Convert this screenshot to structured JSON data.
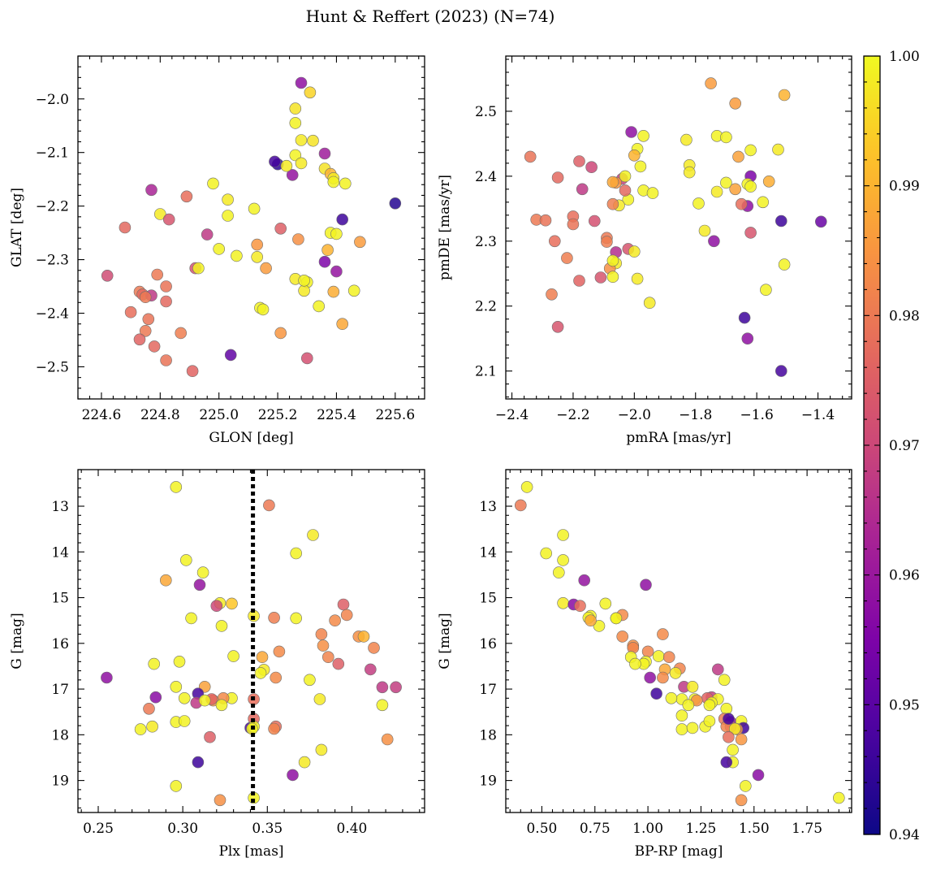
{
  "figure": {
    "title": "Hunt & Reffert (2023) (N=74)"
  },
  "colorbar": {
    "vmin": 0.94,
    "vmax": 1.0,
    "colormap": "plasma",
    "ticks": [
      0.94,
      0.95,
      0.96,
      0.97,
      0.98,
      0.99,
      1.0
    ],
    "tick_labels": [
      "0.94",
      "0.95",
      "0.96",
      "0.97",
      "0.98",
      "0.99",
      "1.00"
    ]
  },
  "chart_data": [
    {
      "type": "scatter",
      "id": "lb",
      "xlabel": "GLON [deg]",
      "ylabel": "GLAT [deg]",
      "xlim": [
        224.52,
        225.7
      ],
      "ylim": [
        -2.56,
        -1.92
      ],
      "invert_y": false,
      "xticks": [
        224.6,
        224.8,
        225.0,
        225.2,
        225.4,
        225.6
      ],
      "xtick_labels": [
        "224.6",
        "224.8",
        "225.0",
        "225.2",
        "225.4",
        "225.6"
      ],
      "yticks": [
        -2.0,
        -2.1,
        -2.2,
        -2.3,
        -2.4,
        -2.5
      ],
      "ytick_labels": [
        "−2.0",
        "−2.1",
        "−2.2",
        "−2.3",
        "−2.4",
        "−2.5"
      ],
      "x": [
        225.6,
        225.28,
        225.31,
        225.26,
        225.26,
        225.28,
        225.32,
        225.36,
        225.26,
        225.28,
        225.36,
        225.2,
        225.38,
        225.25,
        225.39,
        225.39,
        225.43,
        224.77,
        224.98,
        225.03,
        225.12,
        224.68,
        224.8,
        224.83,
        224.89,
        225.03,
        224.96,
        225.42,
        225.21,
        225.38,
        225.4,
        225.13,
        225.48,
        225.0,
        225.06,
        225.13,
        224.62,
        225.16,
        225.36,
        225.26,
        224.92,
        224.93,
        225.3,
        225.4,
        225.29,
        224.73,
        224.74,
        224.77,
        224.75,
        224.82,
        224.79,
        225.46,
        224.82,
        225.14,
        225.15,
        225.34,
        224.7,
        224.76,
        224.75,
        225.42,
        224.87,
        225.21,
        224.73,
        224.78,
        224.82,
        225.3,
        224.91,
        225.04,
        225.19,
        225.23,
        225.37,
        225.39,
        225.29,
        225.27
      ],
      "y": [
        -2.195,
        -1.97,
        -1.988,
        -2.018,
        -2.045,
        -2.077,
        -2.078,
        -2.102,
        -2.105,
        -2.12,
        -2.13,
        -2.122,
        -2.14,
        -2.142,
        -2.148,
        -2.155,
        -2.158,
        -2.17,
        -2.158,
        -2.188,
        -2.205,
        -2.24,
        -2.215,
        -2.225,
        -2.182,
        -2.218,
        -2.253,
        -2.225,
        -2.242,
        -2.25,
        -2.252,
        -2.272,
        -2.267,
        -2.28,
        -2.293,
        -2.295,
        -2.33,
        -2.316,
        -2.304,
        -2.336,
        -2.316,
        -2.316,
        -2.342,
        -2.322,
        -2.358,
        -2.36,
        -2.365,
        -2.367,
        -2.37,
        -2.35,
        -2.328,
        -2.358,
        -2.378,
        -2.39,
        -2.393,
        -2.387,
        -2.398,
        -2.411,
        -2.433,
        -2.42,
        -2.437,
        -2.437,
        -2.449,
        -2.462,
        -2.488,
        -2.484,
        -2.508,
        -2.478,
        -2.117,
        -2.125,
        -2.282,
        -2.36,
        -2.339,
        -2.262
      ],
      "c": [
        0.943,
        0.958,
        0.995,
        0.997,
        0.999,
        0.998,
        0.997,
        0.961,
        0.999,
        0.998,
        0.997,
        0.944,
        0.99,
        0.959,
        0.998,
        0.999,
        0.999,
        0.963,
        0.999,
        0.998,
        0.999,
        0.977,
        0.998,
        0.973,
        0.978,
        0.999,
        0.967,
        0.946,
        0.975,
        0.999,
        0.999,
        0.985,
        0.986,
        0.999,
        0.999,
        0.998,
        0.971,
        0.986,
        0.955,
        0.998,
        0.972,
        0.999,
        0.999,
        0.959,
        0.998,
        0.98,
        0.977,
        0.967,
        0.98,
        0.979,
        0.98,
        0.999,
        0.977,
        0.999,
        0.999,
        0.999,
        0.978,
        0.979,
        0.98,
        0.988,
        0.981,
        0.985,
        0.976,
        0.977,
        0.979,
        0.972,
        0.976,
        0.951,
        0.947,
        0.998,
        0.99,
        0.989,
        0.999,
        0.984
      ]
    },
    {
      "type": "scatter",
      "id": "pm",
      "xlabel": "pmRA [mas/yr]",
      "ylabel": "pmDE [mas/yr]",
      "xlim": [
        -2.42,
        -1.29
      ],
      "ylim": [
        2.057,
        2.585
      ],
      "invert_y": false,
      "xticks": [
        -2.4,
        -2.2,
        -2.0,
        -1.8,
        -1.6,
        -1.4
      ],
      "xtick_labels": [
        "−2.4",
        "−2.2",
        "−2.0",
        "−1.8",
        "−1.6",
        "−1.4"
      ],
      "yticks": [
        2.1,
        2.2,
        2.3,
        2.4,
        2.5
      ],
      "ytick_labels": [
        "2.1",
        "2.2",
        "2.3",
        "2.4",
        "2.5"
      ],
      "x": [
        -1.75,
        -1.67,
        -1.51,
        -2.01,
        -1.97,
        -1.73,
        -1.7,
        -1.53,
        -1.83,
        -1.99,
        -1.62,
        -1.66,
        -1.62,
        -1.82,
        -2.34,
        -1.98,
        -2.18,
        -2.0,
        -2.14,
        -2.25,
        -2.04,
        -2.03,
        -1.82,
        -2.06,
        -1.7,
        -1.73,
        -1.63,
        -1.56,
        -1.97,
        -2.07,
        -1.62,
        -2.02,
        -1.67,
        -2.03,
        -2.17,
        -1.94,
        -1.63,
        -1.65,
        -1.79,
        -2.05,
        -1.58,
        -2.32,
        -2.29,
        -2.2,
        -2.13,
        -1.62,
        -2.2,
        -2.26,
        -1.52,
        -1.39,
        -2.09,
        -2.09,
        -2.06,
        -2.02,
        -2.07,
        -2.22,
        -2.0,
        -2.06,
        -1.77,
        -1.74,
        -2.08,
        -2.11,
        -1.51,
        -2.07,
        -2.07,
        -2.18,
        -1.99,
        -1.57,
        -2.27,
        -1.95,
        -1.63,
        -2.25,
        -1.64,
        -1.52
      ],
      "y": [
        2.543,
        2.512,
        2.525,
        2.468,
        2.462,
        2.462,
        2.46,
        2.441,
        2.456,
        2.442,
        2.44,
        2.43,
        2.4,
        2.417,
        2.43,
        2.415,
        2.423,
        2.432,
        2.414,
        2.398,
        2.396,
        2.4,
        2.406,
        2.39,
        2.39,
        2.376,
        2.388,
        2.392,
        2.378,
        2.391,
        2.384,
        2.364,
        2.38,
        2.378,
        2.38,
        2.374,
        2.354,
        2.357,
        2.358,
        2.355,
        2.36,
        2.333,
        2.332,
        2.338,
        2.331,
        2.313,
        2.326,
        2.3,
        2.331,
        2.33,
        2.305,
        2.299,
        2.283,
        2.288,
        2.357,
        2.274,
        2.284,
        2.266,
        2.316,
        2.3,
        2.258,
        2.244,
        2.264,
        2.27,
        2.245,
        2.239,
        2.242,
        2.225,
        2.218,
        2.205,
        2.15,
        2.168,
        2.182,
        2.1
      ],
      "c": [
        0.986,
        0.986,
        0.99,
        0.958,
        0.999,
        0.999,
        0.999,
        0.998,
        0.998,
        0.999,
        0.999,
        0.987,
        0.955,
        0.998,
        0.979,
        0.999,
        0.975,
        0.99,
        0.97,
        0.977,
        0.968,
        0.999,
        0.998,
        0.985,
        0.999,
        0.998,
        0.999,
        0.989,
        0.999,
        0.988,
        0.999,
        0.999,
        0.987,
        0.977,
        0.967,
        0.999,
        0.958,
        0.978,
        0.999,
        0.998,
        0.999,
        0.98,
        0.979,
        0.978,
        0.972,
        0.973,
        0.979,
        0.978,
        0.946,
        0.952,
        0.98,
        0.981,
        0.965,
        0.973,
        0.981,
        0.981,
        0.998,
        0.998,
        0.998,
        0.958,
        0.984,
        0.973,
        0.999,
        0.999,
        0.999,
        0.976,
        0.998,
        0.999,
        0.981,
        0.998,
        0.958,
        0.973,
        0.946,
        0.947
      ]
    },
    {
      "type": "scatter",
      "id": "plx",
      "xlabel": "Plx [mas]",
      "ylabel": "G [mag]",
      "xlim": [
        0.238,
        0.443
      ],
      "ylim": [
        12.2,
        19.7
      ],
      "invert_y": true,
      "xticks": [
        0.25,
        0.3,
        0.35,
        0.4
      ],
      "xtick_labels": [
        "0.25",
        "0.30",
        "0.35",
        "0.40"
      ],
      "yticks": [
        13,
        14,
        15,
        16,
        17,
        18,
        19
      ],
      "ytick_labels": [
        "13",
        "14",
        "15",
        "16",
        "17",
        "18",
        "19"
      ],
      "vline": 0.3415,
      "x": [
        0.296,
        0.351,
        0.377,
        0.367,
        0.302,
        0.29,
        0.312,
        0.31,
        0.322,
        0.329,
        0.395,
        0.305,
        0.342,
        0.354,
        0.367,
        0.397,
        0.39,
        0.323,
        0.382,
        0.404,
        0.407,
        0.383,
        0.392,
        0.33,
        0.413,
        0.357,
        0.347,
        0.348,
        0.346,
        0.298,
        0.313,
        0.355,
        0.386,
        0.283,
        0.411,
        0.375,
        0.381,
        0.255,
        0.296,
        0.309,
        0.342,
        0.418,
        0.426,
        0.284,
        0.28,
        0.301,
        0.308,
        0.329,
        0.324,
        0.318,
        0.317,
        0.323,
        0.313,
        0.418,
        0.342,
        0.382,
        0.296,
        0.275,
        0.282,
        0.301,
        0.34,
        0.355,
        0.342,
        0.354,
        0.341,
        0.309,
        0.316,
        0.322,
        0.421,
        0.296,
        0.372,
        0.365,
        0.342,
        0.32
      ],
      "y": [
        12.58,
        12.98,
        13.63,
        14.03,
        14.18,
        14.62,
        14.45,
        14.72,
        15.12,
        15.13,
        15.15,
        15.45,
        15.4,
        15.44,
        15.45,
        15.38,
        15.5,
        15.62,
        15.8,
        15.85,
        15.85,
        16.05,
        16.45,
        16.28,
        16.1,
        16.18,
        16.3,
        16.58,
        16.65,
        16.4,
        16.95,
        16.75,
        16.3,
        16.45,
        16.57,
        16.8,
        17.22,
        16.75,
        16.95,
        17.1,
        17.22,
        16.96,
        16.96,
        17.18,
        17.43,
        17.2,
        17.3,
        17.2,
        17.2,
        17.25,
        17.22,
        17.35,
        17.25,
        17.35,
        17.65,
        18.33,
        17.72,
        17.88,
        17.82,
        17.7,
        17.85,
        17.82,
        17.82,
        17.87,
        17.87,
        18.6,
        18.05,
        19.43,
        18.1,
        19.12,
        18.6,
        18.88,
        19.38,
        15.18
      ],
      "c": [
        0.999,
        0.98,
        0.998,
        0.999,
        0.999,
        0.988,
        0.999,
        0.959,
        0.998,
        0.993,
        0.975,
        0.999,
        0.998,
        0.981,
        0.999,
        0.982,
        0.983,
        0.999,
        0.982,
        0.984,
        0.99,
        0.984,
        0.975,
        0.999,
        0.982,
        0.983,
        0.988,
        0.998,
        0.999,
        0.999,
        0.987,
        0.983,
        0.982,
        0.999,
        0.968,
        0.999,
        0.998,
        0.958,
        0.999,
        0.947,
        0.978,
        0.967,
        0.968,
        0.957,
        0.98,
        0.999,
        0.967,
        0.999,
        0.983,
        0.985,
        0.976,
        0.999,
        0.999,
        0.999,
        0.977,
        0.998,
        0.999,
        0.999,
        0.998,
        0.999,
        0.947,
        0.978,
        0.999,
        0.982,
        0.999,
        0.946,
        0.975,
        0.984,
        0.984,
        0.999,
        0.998,
        0.958,
        0.999,
        0.97
      ]
    },
    {
      "type": "scatter",
      "id": "cmd",
      "xlabel": "BP-RP [mag]",
      "ylabel": "G [mag]",
      "xlim": [
        0.33,
        1.96
      ],
      "ylim": [
        12.2,
        19.7
      ],
      "invert_y": true,
      "xticks": [
        0.5,
        0.75,
        1.0,
        1.25,
        1.5,
        1.75
      ],
      "xtick_labels": [
        "0.50",
        "0.75",
        "1.00",
        "1.25",
        "1.50",
        "1.75"
      ],
      "yticks": [
        13,
        14,
        15,
        16,
        17,
        18,
        19
      ],
      "ytick_labels": [
        "13",
        "14",
        "15",
        "16",
        "17",
        "18",
        "19"
      ],
      "x": [
        0.43,
        0.4,
        0.6,
        0.52,
        0.6,
        0.58,
        0.7,
        0.99,
        0.6,
        0.8,
        0.65,
        0.68,
        0.73,
        0.72,
        0.85,
        0.88,
        0.77,
        0.73,
        1.07,
        0.88,
        0.93,
        0.93,
        1.0,
        0.92,
        1.05,
        1.1,
        0.99,
        0.98,
        1.08,
        1.15,
        0.94,
        1.13,
        1.01,
        1.07,
        1.33,
        1.36,
        1.17,
        1.21,
        1.22,
        1.04,
        1.16,
        1.3,
        1.33,
        1.28,
        1.23,
        1.11,
        1.19,
        1.37,
        1.3,
        1.29,
        1.36,
        1.39,
        1.44,
        1.45,
        1.42,
        1.39,
        1.16,
        1.37,
        1.41,
        1.38,
        1.21,
        1.27,
        1.29,
        1.38,
        1.16,
        1.44,
        1.4,
        1.4,
        1.37,
        1.44,
        1.46,
        1.52,
        1.9,
        0.85
      ],
      "y": [
        12.58,
        12.98,
        13.63,
        14.03,
        14.18,
        14.45,
        14.62,
        14.72,
        15.12,
        15.13,
        15.15,
        15.18,
        15.4,
        15.44,
        15.45,
        15.38,
        15.62,
        15.5,
        15.8,
        15.85,
        16.05,
        16.1,
        16.18,
        16.3,
        16.28,
        16.3,
        16.4,
        16.45,
        16.57,
        16.55,
        16.45,
        16.65,
        16.75,
        16.75,
        16.57,
        16.8,
        16.95,
        16.95,
        17.22,
        17.1,
        17.22,
        17.18,
        17.22,
        17.2,
        17.25,
        17.2,
        17.35,
        17.43,
        17.3,
        17.35,
        17.65,
        17.72,
        17.7,
        17.85,
        17.88,
        17.82,
        17.88,
        17.82,
        17.87,
        18.05,
        17.85,
        17.82,
        17.7,
        17.65,
        17.58,
        18.1,
        18.33,
        18.6,
        18.6,
        19.43,
        19.12,
        18.88,
        19.38,
        15.45
      ],
      "c": [
        0.999,
        0.98,
        0.999,
        0.999,
        0.999,
        0.999,
        0.959,
        0.958,
        0.998,
        0.999,
        0.957,
        0.978,
        0.999,
        0.999,
        0.999,
        0.983,
        0.999,
        0.988,
        0.983,
        0.983,
        0.984,
        0.982,
        0.982,
        0.999,
        0.999,
        0.982,
        0.999,
        0.999,
        0.988,
        0.982,
        0.999,
        0.998,
        0.958,
        0.983,
        0.967,
        0.999,
        0.967,
        0.998,
        0.999,
        0.946,
        0.999,
        0.968,
        0.999,
        0.976,
        0.984,
        0.999,
        0.999,
        0.999,
        0.999,
        0.999,
        0.98,
        0.957,
        0.999,
        0.946,
        0.984,
        0.975,
        0.999,
        0.982,
        0.998,
        0.978,
        0.999,
        0.999,
        0.999,
        0.947,
        0.999,
        0.985,
        0.999,
        0.999,
        0.947,
        0.984,
        0.999,
        0.957,
        0.999,
        0.999
      ]
    }
  ]
}
